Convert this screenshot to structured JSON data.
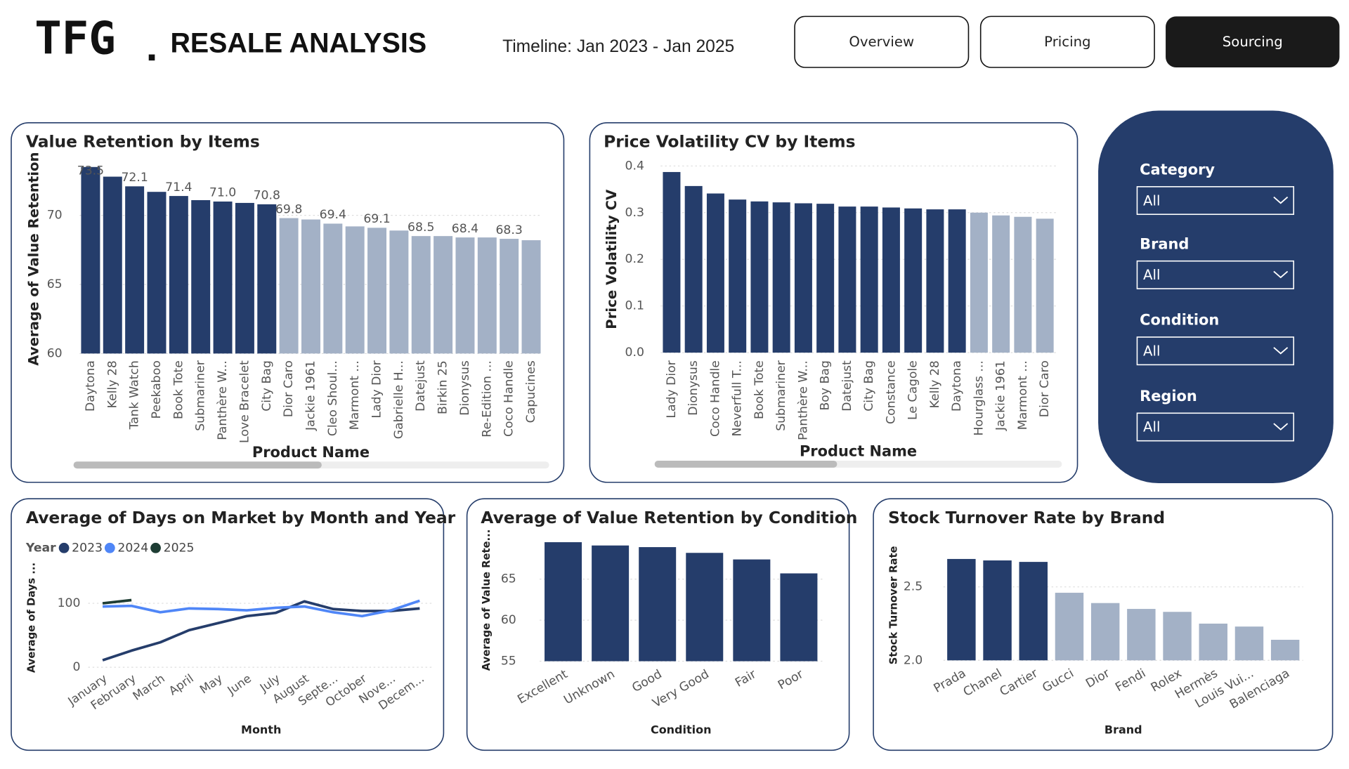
{
  "header": {
    "logo": "TFG",
    "title": "RESALE ANALYSIS",
    "timeline": "Timeline: Jan 2023 - Jan 2025",
    "nav": [
      "Overview",
      "Pricing",
      "Sourcing"
    ]
  },
  "filters": [
    {
      "label": "Category",
      "value": "All"
    },
    {
      "label": "Brand",
      "value": "All"
    },
    {
      "label": "Condition",
      "value": "All"
    },
    {
      "label": "Region",
      "value": "All"
    }
  ],
  "chart_data": [
    {
      "type": "bar",
      "title": "Value Retention by Items",
      "y_label": "Average of Value Retention",
      "x_label": "Product Name",
      "categories": [
        "Daytona",
        "Kelly 28",
        "Tank Watch",
        "Peekaboo",
        "Book Tote",
        "Submariner",
        "Panthère W...",
        "Love Bracelet",
        "City Bag",
        "Dior Caro",
        "Jackie 1961",
        "Cleo Shoul...",
        "Marmont ...",
        "Lady Dior",
        "Gabrielle H...",
        "Datejust",
        "Birkin 25",
        "Dionysus",
        "Re-Edition ...",
        "Coco Handle",
        "Capucines"
      ],
      "values": [
        73.5,
        72.8,
        72.1,
        71.7,
        71.4,
        71.1,
        71.0,
        70.9,
        70.8,
        69.8,
        69.7,
        69.4,
        69.2,
        69.1,
        68.9,
        68.5,
        68.5,
        68.4,
        68.4,
        68.3,
        68.2
      ],
      "value_labels": [
        "73.5",
        null,
        "72.1",
        null,
        "71.4",
        null,
        "71.0",
        null,
        "70.8",
        "69.8",
        null,
        "69.4",
        null,
        "69.1",
        null,
        "68.5",
        null,
        "68.4",
        null,
        "68.3",
        null
      ],
      "colors": [
        "#253d6b",
        "#253d6b",
        "#253d6b",
        "#253d6b",
        "#253d6b",
        "#253d6b",
        "#253d6b",
        "#253d6b",
        "#253d6b",
        "#a3b1c6",
        "#a3b1c6",
        "#a3b1c6",
        "#a3b1c6",
        "#a3b1c6",
        "#a3b1c6",
        "#a3b1c6",
        "#a3b1c6",
        "#a3b1c6",
        "#a3b1c6",
        "#a3b1c6",
        "#a3b1c6"
      ],
      "ylim": [
        60,
        73.7
      ],
      "yticks": [
        60,
        65,
        70
      ],
      "grid": true
    },
    {
      "type": "bar",
      "title": "Price Volatility CV by Items",
      "y_label": "Price Volatility CV",
      "x_label": "Product Name",
      "categories": [
        "Lady Dior",
        "Dionysus",
        "Coco Handle",
        "Neverfull T...",
        "Book Tote",
        "Submariner",
        "Panthère W...",
        "Boy Bag",
        "Datejust",
        "City Bag",
        "Constance",
        "Le Cagole",
        "Kelly 28",
        "Daytona",
        "Hourglass ...",
        "Jackie 1961",
        "Marmont ...",
        "Dior Caro"
      ],
      "values": [
        0.387,
        0.357,
        0.341,
        0.328,
        0.324,
        0.322,
        0.32,
        0.319,
        0.313,
        0.313,
        0.311,
        0.309,
        0.307,
        0.307,
        0.3,
        0.294,
        0.291,
        0.287
      ],
      "colors": [
        "#253d6b",
        "#253d6b",
        "#253d6b",
        "#253d6b",
        "#253d6b",
        "#253d6b",
        "#253d6b",
        "#253d6b",
        "#253d6b",
        "#253d6b",
        "#253d6b",
        "#253d6b",
        "#253d6b",
        "#253d6b",
        "#a3b1c6",
        "#a3b1c6",
        "#a3b1c6",
        "#a3b1c6"
      ],
      "ylim": [
        0,
        0.4
      ],
      "yticks": [
        {
          "value": 0,
          "label": "0.0"
        },
        0.1,
        0.2,
        0.3,
        0.4
      ],
      "grid": true
    },
    {
      "type": "line",
      "title": "Average of Days on Market by Month and Year",
      "y_label": "Average of Days ...",
      "x_label": "Month",
      "legend_title": "Year",
      "categories": [
        "January",
        "February",
        "March",
        "April",
        "May",
        "June",
        "July",
        "August",
        "Septe...",
        "October",
        "Nove...",
        "Decem..."
      ],
      "series": [
        {
          "name": "2023",
          "color": "#253d6b",
          "values": [
            11,
            26,
            39,
            58,
            69,
            80,
            85,
            103,
            91,
            88,
            88,
            92
          ]
        },
        {
          "name": "2024",
          "color": "#4f86f7",
          "values": [
            95,
            96,
            86,
            92,
            91,
            89,
            93,
            95,
            86,
            80,
            89,
            104
          ]
        },
        {
          "name": "2025",
          "color": "#1e3d34",
          "values": [
            100,
            105,
            null,
            null,
            null,
            null,
            null,
            null,
            null,
            null,
            null,
            null
          ]
        }
      ],
      "ylim": [
        -5,
        160
      ],
      "yticks": [
        0,
        100
      ],
      "grid": true
    },
    {
      "type": "bar",
      "title": "Average of Value Retention by Condition",
      "y_label": "Average of Value Rete...",
      "x_label": "Condition",
      "categories": [
        "Excellent",
        "Unknown",
        "Good",
        "Very Good",
        "Fair",
        "Poor"
      ],
      "values": [
        69.5,
        69.1,
        68.9,
        68.2,
        67.4,
        65.7
      ],
      "color": "#253d6b",
      "ylim": [
        55,
        69.9
      ],
      "yticks": [
        55,
        60,
        65
      ],
      "grid": true
    },
    {
      "type": "bar",
      "title": "Stock Turnover Rate by Brand",
      "y_label": "Stock Turnover Rate",
      "x_label": "Brand",
      "categories": [
        "Prada",
        "Chanel",
        "Cartier",
        "Gucci",
        "Dior",
        "Fendi",
        "Rolex",
        "Hermès",
        "Louis Vui...",
        "Balenciaga"
      ],
      "values": [
        2.69,
        2.68,
        2.67,
        2.46,
        2.39,
        2.35,
        2.33,
        2.25,
        2.23,
        2.14
      ],
      "colors": [
        "#253d6b",
        "#253d6b",
        "#253d6b",
        "#a3b1c6",
        "#a3b1c6",
        "#a3b1c6",
        "#a3b1c6",
        "#a3b1c6",
        "#a3b1c6",
        "#a3b1c6"
      ],
      "ylim": [
        2,
        2.75
      ],
      "yticks": [
        {
          "value": 2,
          "label": "2.0"
        },
        2.5
      ],
      "grid": true
    }
  ]
}
